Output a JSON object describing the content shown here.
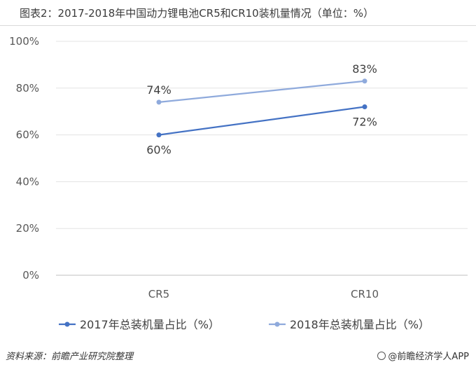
{
  "title": "图表2：2017-2018年中国动力锂电池CR5和CR10装机量情况（单位：%）",
  "chart_data": {
    "type": "line",
    "categories": [
      "CR5",
      "CR10"
    ],
    "series": [
      {
        "name": "2017年总装机量占比（%）",
        "values": [
          60,
          72
        ],
        "labels": [
          "60%",
          "72%"
        ],
        "color": "#4472c4"
      },
      {
        "name": "2018年总装机量占比（%）",
        "values": [
          74,
          83
        ],
        "labels": [
          "74%",
          "83%"
        ],
        "color": "#8faadc"
      }
    ],
    "ylim": [
      0,
      100
    ],
    "yticks": [
      0,
      20,
      40,
      60,
      80,
      100
    ],
    "ytick_labels": [
      "0%",
      "20%",
      "40%",
      "60%",
      "80%",
      "100%"
    ],
    "grid": true,
    "legend": "bottom-left"
  },
  "footer": {
    "source": "资料来源：前瞻产业研究院整理",
    "brand": "@前瞻经济学人APP"
  }
}
